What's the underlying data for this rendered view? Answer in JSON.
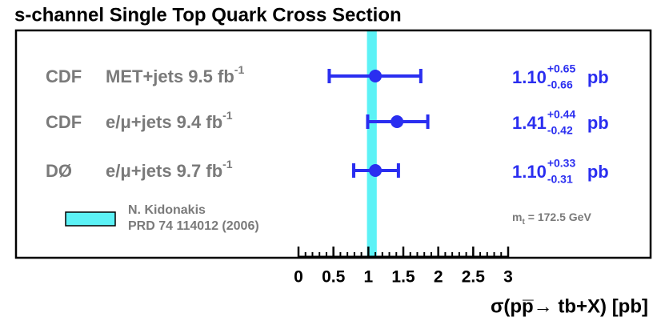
{
  "chart_data": {
    "type": "errorbar",
    "title": "s-channel Single Top Quark Cross Section",
    "xlabel": "σ(pp̅→ tb+X) [pb]",
    "categories": [
      "CDF",
      "CDF",
      "DØ"
    ],
    "channels": [
      "MET+jets 9.5 fb",
      "e/μ+jets 9.4 fb",
      "e/μ+jets 9.7 fb"
    ],
    "channel_sup": [
      "-1",
      "-1",
      "-1"
    ],
    "values": [
      1.1,
      1.41,
      1.1
    ],
    "value_labels": [
      "1.10",
      "1.41",
      "1.10"
    ],
    "err_high": [
      0.65,
      0.44,
      0.33
    ],
    "err_high_labels": [
      "+0.65",
      "+0.44",
      "+0.33"
    ],
    "err_low": [
      0.66,
      0.42,
      0.31
    ],
    "err_low_labels": [
      "-0.66",
      "-0.42",
      "-0.31"
    ],
    "unit": "pb",
    "color": "#2a2ef0",
    "label_color": "#7a7a7a",
    "band": {
      "lines": [
        "N. Kidonakis",
        "PRD 74 114012 (2006)"
      ],
      "center": 1.05,
      "error": 0.07,
      "color": "#5cf2f6"
    },
    "mass_label": {
      "symbol": "m",
      "sub": "t",
      "text": "= 172.5 GeV"
    },
    "xlim": [
      0,
      3
    ],
    "xticks": [
      0,
      0.5,
      1,
      1.5,
      2,
      2.5,
      3
    ],
    "xminor_step": 0.1
  }
}
